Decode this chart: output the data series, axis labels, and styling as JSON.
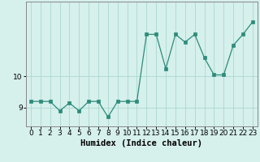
{
  "x": [
    0,
    1,
    2,
    3,
    4,
    5,
    6,
    7,
    8,
    9,
    10,
    11,
    12,
    13,
    14,
    15,
    16,
    17,
    18,
    19,
    20,
    21,
    22,
    23
  ],
  "y": [
    9.2,
    9.2,
    9.2,
    8.9,
    9.15,
    8.9,
    9.2,
    9.2,
    8.7,
    9.2,
    9.2,
    9.2,
    11.35,
    11.35,
    10.25,
    11.35,
    11.1,
    11.35,
    10.6,
    10.05,
    10.05,
    11.0,
    11.35,
    11.75
  ],
  "line_color": "#2d8c7a",
  "marker_color": "#2d8c7a",
  "bg_color": "#d6f0ec",
  "grid_color": "#aad8d2",
  "xlabel": "Humidex (Indice chaleur)",
  "ylim": [
    8.4,
    12.4
  ],
  "xlim": [
    -0.5,
    23.5
  ],
  "yticks": [
    9,
    10
  ],
  "xticks": [
    0,
    1,
    2,
    3,
    4,
    5,
    6,
    7,
    8,
    9,
    10,
    11,
    12,
    13,
    14,
    15,
    16,
    17,
    18,
    19,
    20,
    21,
    22,
    23
  ],
  "tick_fontsize": 6.5,
  "label_fontsize": 7.5
}
